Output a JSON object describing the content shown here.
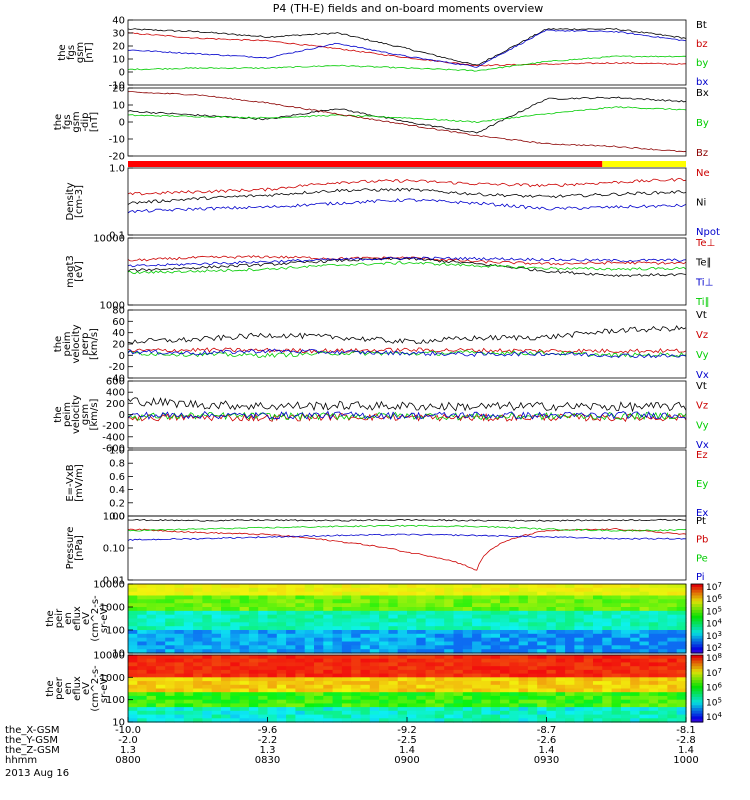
{
  "title": "P4 (TH-E) fields and on-board moments overview",
  "date_label": "2013 Aug 16",
  "colors": {
    "black": "#000000",
    "red": "#cc0000",
    "green": "#00cc00",
    "blue": "#0000cc",
    "orange_bar": "#ff0000",
    "yellow_bar": "#ffff00"
  },
  "chart_data": [
    {
      "type": "line",
      "panel": "fgs-gsm",
      "ylabel": [
        "the",
        "fgs",
        "gsm",
        "[nT]"
      ],
      "ylim": [
        -10,
        40
      ],
      "yticks": [
        "40",
        "30",
        "20",
        "10",
        "0",
        "-10"
      ],
      "series": [
        {
          "name": "Bt",
          "color": "#000000",
          "x": [
            0,
            15,
            30,
            45,
            60,
            75,
            90,
            105,
            120
          ],
          "y": [
            33,
            31,
            27,
            30,
            18,
            5,
            33,
            33,
            26
          ]
        },
        {
          "name": "bz",
          "color": "#cc0000",
          "x": [
            0,
            15,
            30,
            45,
            60,
            75,
            90,
            105,
            120
          ],
          "y": [
            30,
            26,
            24,
            18,
            11,
            5,
            6,
            7,
            6
          ]
        },
        {
          "name": "by",
          "color": "#00cc00",
          "x": [
            0,
            15,
            30,
            45,
            60,
            75,
            90,
            105,
            120
          ],
          "y": [
            2,
            3,
            3,
            5,
            3,
            1,
            8,
            12,
            12
          ]
        },
        {
          "name": "bx",
          "color": "#0000cc",
          "x": [
            0,
            15,
            30,
            45,
            60,
            75,
            90,
            105,
            120
          ],
          "y": [
            17,
            14,
            11,
            22,
            12,
            4,
            32,
            31,
            24
          ]
        }
      ]
    },
    {
      "type": "line",
      "panel": "fgs-gsm-dip",
      "ylabel": [
        "the",
        "fgs",
        "gsm",
        "-dip",
        "[nT]"
      ],
      "ylim": [
        -25,
        25
      ],
      "yticks": [
        "20",
        "10",
        "0",
        "-10",
        "-20"
      ],
      "series": [
        {
          "name": "Bx",
          "color": "#000000",
          "x": [
            0,
            15,
            30,
            45,
            60,
            75,
            90,
            105,
            120
          ],
          "y": [
            8,
            5,
            2,
            10,
            0,
            -8,
            17,
            18,
            15
          ]
        },
        {
          "name": "By",
          "color": "#00cc00",
          "x": [
            0,
            15,
            30,
            45,
            60,
            75,
            90,
            105,
            120
          ],
          "y": [
            5,
            4,
            3,
            5,
            3,
            0,
            6,
            11,
            9
          ]
        },
        {
          "name": "Bz",
          "color": "#8b0000",
          "x": [
            0,
            15,
            30,
            45,
            60,
            75,
            90,
            105,
            120
          ],
          "y": [
            22,
            20,
            14,
            6,
            -2,
            -10,
            -16,
            -18,
            -22
          ]
        }
      ]
    },
    {
      "type": "line",
      "panel": "density",
      "log": true,
      "ylabel": [
        "Density",
        "[cm-3]"
      ],
      "ylim": [
        0.1,
        1.4
      ],
      "yticks": [
        "1.0",
        "0.1"
      ],
      "series": [
        {
          "name": "Ne",
          "color": "#cc0000",
          "x": [
            0,
            15,
            30,
            45,
            60,
            75,
            90,
            105,
            120
          ],
          "y": [
            0.5,
            0.55,
            0.6,
            0.8,
            0.85,
            0.75,
            0.7,
            0.8,
            0.9
          ]
        },
        {
          "name": "Ni",
          "color": "#000000",
          "x": [
            0,
            15,
            30,
            45,
            60,
            75,
            90,
            105,
            120
          ],
          "y": [
            0.35,
            0.42,
            0.48,
            0.58,
            0.6,
            0.5,
            0.45,
            0.5,
            0.55
          ]
        },
        {
          "name": "Npot",
          "color": "#0000cc",
          "x": [
            0,
            15,
            30,
            45,
            60,
            75,
            90,
            105,
            120
          ],
          "y": [
            0.25,
            0.28,
            0.3,
            0.35,
            0.4,
            0.35,
            0.28,
            0.3,
            0.32
          ]
        }
      ]
    },
    {
      "type": "line",
      "panel": "temperature",
      "log": true,
      "ylabel": [
        "magt3",
        "[eV]"
      ],
      "ylim": [
        1000,
        12000
      ],
      "yticks": [
        "10000",
        "1000"
      ],
      "series": [
        {
          "name": "Te⊥",
          "color": "#cc0000",
          "x": [
            0,
            15,
            30,
            45,
            60,
            75,
            90,
            105,
            120
          ],
          "y": [
            5200,
            5800,
            6000,
            5600,
            5800,
            5000,
            4600,
            4800,
            4700
          ]
        },
        {
          "name": "Te∥",
          "color": "#000000",
          "x": [
            0,
            15,
            30,
            45,
            60,
            75,
            90,
            105,
            120
          ],
          "y": [
            3600,
            4000,
            4500,
            5200,
            5600,
            4600,
            3500,
            3000,
            3100
          ]
        },
        {
          "name": "Ti⊥",
          "color": "#0000cc",
          "x": [
            0,
            15,
            30,
            45,
            60,
            75,
            90,
            105,
            120
          ],
          "y": [
            4200,
            4600,
            5000,
            5400,
            5700,
            5600,
            5400,
            5200,
            5300
          ]
        },
        {
          "name": "Ti∥",
          "color": "#00cc00",
          "x": [
            0,
            15,
            30,
            45,
            60,
            75,
            90,
            105,
            120
          ],
          "y": [
            3300,
            3500,
            3800,
            4400,
            4800,
            4300,
            3900,
            3800,
            3900
          ]
        }
      ]
    },
    {
      "type": "line",
      "panel": "peim-velocity-perp",
      "ylabel": [
        "the",
        "peim",
        "velocity",
        "perp",
        "[km/s]"
      ],
      "ylim": [
        -60,
        90
      ],
      "yticks": [
        "80",
        "60",
        "40",
        "20",
        "0",
        "-20",
        "-40"
      ],
      "series": [
        {
          "name": "Vt",
          "color": "#000000",
          "x": [
            0,
            15,
            30,
            45,
            60,
            75,
            90,
            105,
            120
          ],
          "y": [
            20,
            25,
            35,
            30,
            20,
            28,
            30,
            45,
            50
          ]
        },
        {
          "name": "Vz",
          "color": "#cc0000",
          "x": [
            0,
            15,
            30,
            45,
            60,
            75,
            90,
            105,
            120
          ],
          "y": [
            0,
            2,
            1,
            0,
            2,
            1,
            0,
            0,
            0
          ]
        },
        {
          "name": "Vy",
          "color": "#00cc00",
          "x": [
            0,
            15,
            30,
            45,
            60,
            75,
            90,
            105,
            120
          ],
          "y": [
            -5,
            -8,
            -10,
            -5,
            -6,
            -4,
            -5,
            -10,
            -8
          ]
        },
        {
          "name": "Vx",
          "color": "#0000cc",
          "x": [
            0,
            15,
            30,
            45,
            60,
            75,
            90,
            105,
            120
          ],
          "y": [
            -2,
            -5,
            0,
            -3,
            -5,
            -8,
            -6,
            -10,
            -12
          ]
        }
      ]
    },
    {
      "type": "line",
      "panel": "peim-velocity-gsm",
      "ylabel": [
        "the",
        "peim",
        "velocity",
        "gsm",
        "[km/s]"
      ],
      "ylim": [
        -600,
        600
      ],
      "yticks": [
        "600",
        "400",
        "200",
        "0",
        "-200",
        "-400",
        "-600"
      ],
      "series": [
        {
          "name": "Vt",
          "color": "#000000",
          "x": [
            0,
            15,
            30,
            45,
            60,
            75,
            90,
            105,
            120
          ],
          "y": [
            250,
            180,
            150,
            160,
            150,
            140,
            150,
            140,
            140
          ]
        },
        {
          "name": "Vz",
          "color": "#cc0000",
          "x": [
            0,
            15,
            30,
            45,
            60,
            75,
            90,
            105,
            120
          ],
          "y": [
            -60,
            -50,
            -60,
            -40,
            -50,
            -60,
            -50,
            -60,
            -50
          ]
        },
        {
          "name": "Vy",
          "color": "#00cc00",
          "x": [
            0,
            15,
            30,
            45,
            60,
            75,
            90,
            105,
            120
          ],
          "y": [
            -40,
            -20,
            -30,
            -30,
            -20,
            -40,
            -30,
            -30,
            -20
          ]
        },
        {
          "name": "Vx",
          "color": "#0000cc",
          "x": [
            0,
            15,
            30,
            45,
            60,
            75,
            90,
            105,
            120
          ],
          "y": [
            -20,
            -10,
            -20,
            -10,
            -20,
            -10,
            -20,
            -10,
            -10
          ]
        }
      ]
    },
    {
      "type": "line",
      "panel": "efield",
      "ylabel": [
        "E=-VxB",
        "[mV/m]"
      ],
      "ylim": [
        0,
        1.0
      ],
      "yticks": [
        "1.0",
        "0.8",
        "0.6",
        "0.4",
        "0.2",
        "0.0"
      ],
      "series": [
        {
          "name": "Ez",
          "color": "#cc0000",
          "x": [],
          "y": []
        },
        {
          "name": "Ey",
          "color": "#00cc00",
          "x": [],
          "y": []
        },
        {
          "name": "Ex",
          "color": "#0000cc",
          "x": [],
          "y": []
        }
      ]
    },
    {
      "type": "line",
      "panel": "pressure",
      "log": true,
      "ylabel": [
        "Pressure",
        "[nPa]"
      ],
      "ylim": [
        0.01,
        1.2
      ],
      "yticks": [
        "1.00",
        "0.10",
        "0.01"
      ],
      "series": [
        {
          "name": "Pt",
          "color": "#000000",
          "x": [
            0,
            15,
            30,
            45,
            60,
            75,
            90,
            105,
            120
          ],
          "y": [
            0.9,
            0.85,
            0.88,
            0.85,
            0.9,
            0.85,
            0.85,
            0.88,
            0.9
          ]
        },
        {
          "name": "Pb",
          "color": "#cc0000",
          "x": [
            0,
            15,
            30,
            45,
            60,
            75,
            90,
            105,
            120
          ],
          "y": [
            0.45,
            0.35,
            0.3,
            0.18,
            0.08,
            0.02,
            0.4,
            0.45,
            0.3
          ]
        },
        {
          "name": "Pe",
          "color": "#00cc00",
          "x": [
            0,
            15,
            30,
            45,
            60,
            75,
            90,
            105,
            120
          ],
          "y": [
            0.4,
            0.45,
            0.5,
            0.55,
            0.58,
            0.55,
            0.45,
            0.4,
            0.42
          ]
        },
        {
          "name": "Pi",
          "color": "#0000cc",
          "x": [
            0,
            15,
            30,
            45,
            60,
            75,
            90,
            105,
            120
          ],
          "y": [
            0.2,
            0.22,
            0.25,
            0.28,
            0.3,
            0.28,
            0.25,
            0.22,
            0.22
          ]
        }
      ]
    },
    {
      "type": "heatmap",
      "panel": "peir-eflux",
      "ylabel": [
        "the",
        "peir",
        "en",
        "eflux",
        "eV",
        "(cm^2-s-",
        "sr-eV)"
      ],
      "ylim": [
        7,
        15000
      ],
      "yticks": [
        "10000",
        "1000",
        "100",
        "10"
      ],
      "colorbar": {
        "range_exp": [
          2,
          7
        ],
        "labels": [
          "10^7",
          "10^6",
          "10^5",
          "10^4",
          "10^3",
          "10^2"
        ]
      }
    },
    {
      "type": "heatmap",
      "panel": "peer-eflux",
      "ylabel": [
        "the",
        "peer",
        "en",
        "eflux",
        "eV",
        "(cm^2-s-",
        "sr-eV)"
      ],
      "ylim": [
        7,
        15000
      ],
      "yticks": [
        "10000",
        "1000",
        "100",
        "10"
      ],
      "colorbar": {
        "range_exp": [
          4,
          8
        ],
        "labels": [
          "10^8",
          "10^7",
          "10^6",
          "10^5",
          "10^4"
        ]
      }
    }
  ],
  "status_bar": {
    "segments": [
      {
        "from": 0,
        "to": 102,
        "color": "#ff0000"
      },
      {
        "from": 102,
        "to": 120,
        "color": "#ffff00"
      }
    ]
  },
  "xaxis": {
    "row_labels": [
      "the_X-GSM",
      "the_Y-GSM",
      "the_Z-GSM",
      "hhmm"
    ],
    "ticks": [
      {
        "t": 0,
        "X": "-10.0",
        "Y": "-2.0",
        "Z": "1.3",
        "hhmm": "0800"
      },
      {
        "t": 30,
        "X": "-9.6",
        "Y": "-2.2",
        "Z": "1.3",
        "hhmm": "0830"
      },
      {
        "t": 60,
        "X": "-9.2",
        "Y": "-2.5",
        "Z": "1.4",
        "hhmm": "0900"
      },
      {
        "t": 90,
        "X": "-8.7",
        "Y": "-2.6",
        "Z": "1.4",
        "hhmm": "0930"
      },
      {
        "t": 120,
        "X": "-8.1",
        "Y": "-2.8",
        "Z": "1.4",
        "hhmm": "1000"
      }
    ]
  }
}
